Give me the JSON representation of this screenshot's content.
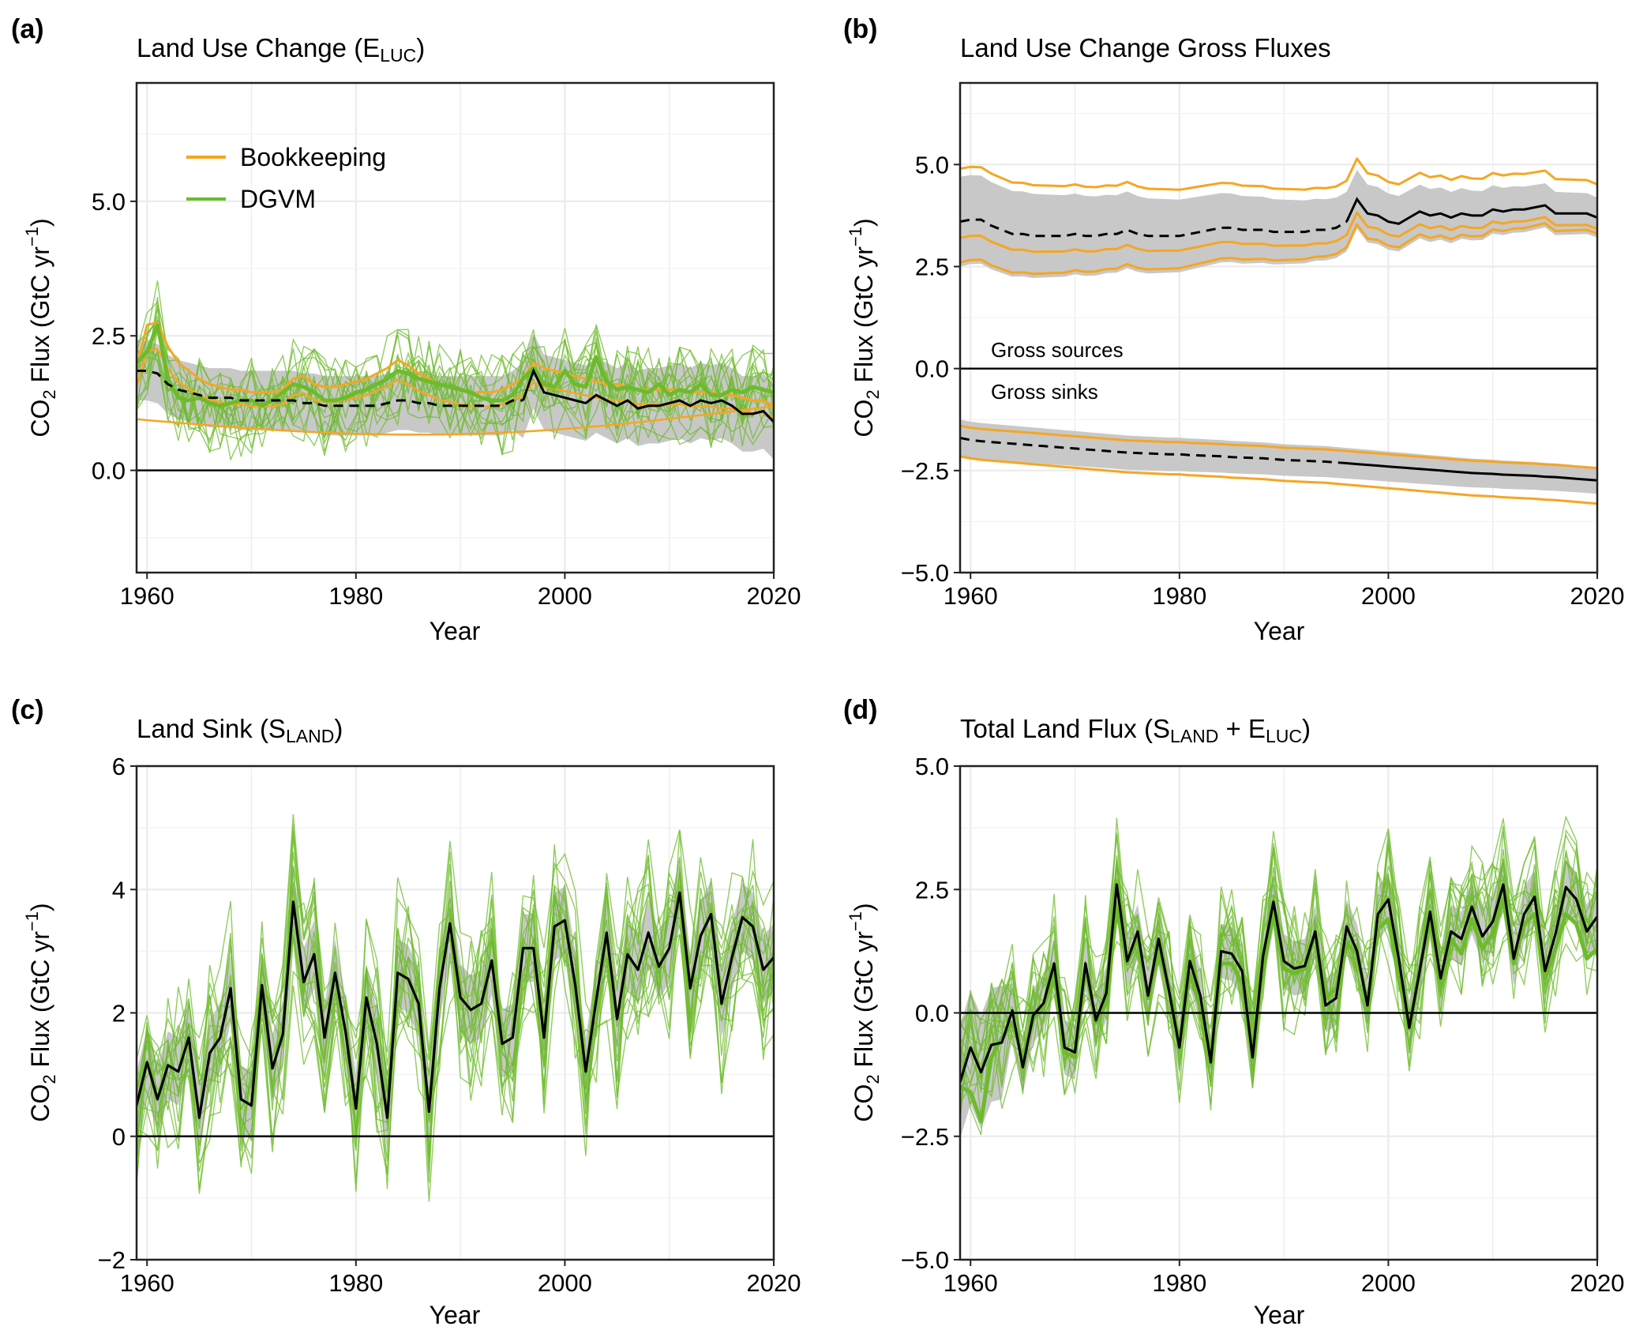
{
  "figure": {
    "panels": [
      {
        "letter": "(a)",
        "title_main": "Land Use Change (E",
        "title_sub": "LUC",
        "title_tail": ")",
        "ylabel_main": "CO",
        "ylabel_sub2": "2",
        "ylabel_rest": " Flux (GtC yr",
        "ylabel_sup": "−1",
        "ylabel_end": ")",
        "xlabel": "Year",
        "legend": [
          {
            "label": "Bookkeeping",
            "color": "#f5a623"
          },
          {
            "label": "DGVM",
            "color": "#6dbb2c"
          }
        ]
      },
      {
        "letter": "(b)",
        "title_main": "Land Use Change Gross Fluxes",
        "title_sub": "",
        "title_tail": "",
        "ylabel_main": "CO",
        "ylabel_sub2": "2",
        "ylabel_rest": " Flux (GtC yr",
        "ylabel_sup": "−1",
        "ylabel_end": ")",
        "xlabel": "Year",
        "annotations": [
          "Gross sources",
          "Gross sinks"
        ]
      },
      {
        "letter": "(c)",
        "title_main": "Land Sink (S",
        "title_sub": "LAND",
        "title_tail": ")",
        "ylabel_main": "CO",
        "ylabel_sub2": "2",
        "ylabel_rest": " Flux (GtC yr",
        "ylabel_sup": "−1",
        "ylabel_end": ")",
        "xlabel": "Year"
      },
      {
        "letter": "(d)",
        "title_main": "Total Land Flux (S",
        "title_sub": "LAND",
        "title_mid": " + E",
        "title_sub2": "LUC",
        "title_tail": ")",
        "ylabel_main": "CO",
        "ylabel_sub2": "2",
        "ylabel_rest": " Flux (GtC yr",
        "ylabel_sup": "−1",
        "ylabel_end": ")",
        "xlabel": "Year"
      }
    ],
    "colors": {
      "bookkeeping": "#f5a623",
      "dgvm": "#6dbb2c",
      "uncertainty_band": "#c8c8c8",
      "mean": "#000000"
    }
  },
  "chart_data": [
    {
      "type": "line",
      "title": "Land Use Change (ELUC)",
      "xlabel": "Year",
      "ylabel": "CO2 Flux (GtC yr−1)",
      "xlim": [
        1959,
        2020
      ],
      "ylim": [
        -1.9,
        7.2
      ],
      "xticks": [
        1960,
        1980,
        2000,
        2020
      ],
      "yticks": [
        0.0,
        2.5,
        5.0
      ],
      "ytick_labels": [
        "0.0",
        "2.5",
        "5.0"
      ],
      "grid": true,
      "legend_position": "top-left",
      "x": [
        1959,
        1960,
        1961,
        1962,
        1963,
        1964,
        1965,
        1966,
        1967,
        1968,
        1969,
        1970,
        1971,
        1972,
        1973,
        1974,
        1975,
        1976,
        1977,
        1978,
        1979,
        1980,
        1981,
        1982,
        1983,
        1984,
        1985,
        1986,
        1987,
        1988,
        1989,
        1990,
        1991,
        1992,
        1993,
        1994,
        1995,
        1996,
        1997,
        1998,
        1999,
        2000,
        2001,
        2002,
        2003,
        2004,
        2005,
        2006,
        2007,
        2008,
        2009,
        2010,
        2011,
        2012,
        2013,
        2014,
        2015,
        2016,
        2017,
        2018,
        2019,
        2020
      ],
      "series": [
        {
          "name": "Bookkeeping",
          "color": "#f5a623",
          "values": [
            1.9,
            2.7,
            2.75,
            2.3,
            2.0,
            1.85,
            1.7,
            1.6,
            1.55,
            1.5,
            1.5,
            1.45,
            1.45,
            1.45,
            1.5,
            1.7,
            1.75,
            1.6,
            1.55,
            1.55,
            1.6,
            1.65,
            1.7,
            1.8,
            1.9,
            2.05,
            1.95,
            1.8,
            1.7,
            1.6,
            1.55,
            1.5,
            1.45,
            1.45,
            1.45,
            1.5,
            1.6,
            1.7,
            2.0,
            1.9,
            1.85,
            1.8,
            1.75,
            1.7,
            1.65,
            1.6,
            1.6,
            1.55,
            1.5,
            1.5,
            1.5,
            1.5,
            1.5,
            1.45,
            1.45,
            1.45,
            1.4,
            1.4,
            1.35,
            1.3,
            1.3,
            1.2
          ]
        },
        {
          "name": "DGVM",
          "color": "#6dbb2c",
          "values": [
            2.0,
            2.2,
            2.7,
            1.7,
            1.35,
            1.3,
            1.35,
            1.25,
            1.2,
            1.25,
            1.3,
            1.3,
            1.2,
            1.3,
            1.45,
            1.6,
            1.55,
            1.45,
            1.3,
            1.3,
            1.35,
            1.45,
            1.5,
            1.6,
            1.7,
            1.85,
            1.8,
            1.7,
            1.65,
            1.6,
            1.55,
            1.5,
            1.45,
            1.35,
            1.3,
            1.3,
            1.4,
            1.7,
            1.9,
            1.6,
            1.55,
            1.85,
            1.6,
            1.55,
            2.1,
            1.65,
            1.5,
            1.55,
            1.5,
            1.45,
            1.6,
            1.4,
            1.5,
            1.45,
            1.6,
            1.4,
            1.4,
            1.5,
            1.45,
            1.55,
            1.5,
            1.45
          ]
        },
        {
          "name": "",
          "color": "#000000",
          "values": [
            1.85,
            1.85,
            1.8,
            1.6,
            1.5,
            1.45,
            1.4,
            1.35,
            1.35,
            1.35,
            1.3,
            1.3,
            1.3,
            1.3,
            1.3,
            1.3,
            1.25,
            1.25,
            1.2,
            1.2,
            1.2,
            1.2,
            1.2,
            1.2,
            1.25,
            1.3,
            1.3,
            1.25,
            1.25,
            1.2,
            1.2,
            1.2,
            1.2,
            1.2,
            1.2,
            1.2,
            1.3,
            1.3,
            1.85,
            1.45,
            1.4,
            1.35,
            1.3,
            1.25,
            1.4,
            1.3,
            1.2,
            1.3,
            1.15,
            1.2,
            1.2,
            1.25,
            1.3,
            1.2,
            1.3,
            1.25,
            1.3,
            1.2,
            1.05,
            1.05,
            1.1,
            0.9
          ]
        }
      ]
    },
    {
      "type": "line",
      "title": "Land Use Change Gross Fluxes",
      "xlabel": "Year",
      "ylabel": "CO2 Flux (GtC yr−1)",
      "xlim": [
        1959,
        2020
      ],
      "ylim": [
        -5.0,
        7.0
      ],
      "xticks": [
        1960,
        1980,
        2000,
        2020
      ],
      "yticks": [
        -5.0,
        -2.5,
        0.0,
        2.5,
        5.0
      ],
      "ytick_labels": [
        "−5.0",
        "−2.5",
        "0.0",
        "2.5",
        "5.0"
      ],
      "grid": true,
      "x": [
        1959,
        1960,
        1961,
        1962,
        1963,
        1964,
        1965,
        1966,
        1967,
        1968,
        1969,
        1970,
        1971,
        1972,
        1973,
        1974,
        1975,
        1976,
        1977,
        1978,
        1979,
        1980,
        1981,
        1982,
        1983,
        1984,
        1985,
        1986,
        1987,
        1988,
        1989,
        1990,
        1991,
        1992,
        1993,
        1994,
        1995,
        1996,
        1997,
        1998,
        1999,
        2000,
        2001,
        2002,
        2003,
        2004,
        2005,
        2006,
        2007,
        2008,
        2009,
        2010,
        2011,
        2012,
        2013,
        2014,
        2015,
        2016,
        2017,
        2018,
        2019,
        2020
      ],
      "series": [
        {
          "name": "Gross sources",
          "color": "#000000",
          "values": [
            3.6,
            3.65,
            3.65,
            3.5,
            3.4,
            3.3,
            3.3,
            3.25,
            3.25,
            3.25,
            3.25,
            3.3,
            3.25,
            3.25,
            3.3,
            3.3,
            3.4,
            3.3,
            3.25,
            3.25,
            3.25,
            3.25,
            3.3,
            3.35,
            3.4,
            3.45,
            3.45,
            3.4,
            3.4,
            3.4,
            3.35,
            3.35,
            3.35,
            3.35,
            3.4,
            3.4,
            3.45,
            3.6,
            4.15,
            3.8,
            3.75,
            3.6,
            3.55,
            3.7,
            3.85,
            3.75,
            3.8,
            3.7,
            3.8,
            3.75,
            3.75,
            3.9,
            3.85,
            3.9,
            3.9,
            3.95,
            4.0,
            3.8,
            3.8,
            3.8,
            3.8,
            3.7
          ]
        },
        {
          "name": "Gross sinks",
          "color": "#000000",
          "values": [
            -1.7,
            -1.75,
            -1.78,
            -1.8,
            -1.82,
            -1.84,
            -1.86,
            -1.88,
            -1.9,
            -1.92,
            -1.94,
            -1.96,
            -1.98,
            -2.0,
            -2.02,
            -2.04,
            -2.06,
            -2.07,
            -2.08,
            -2.09,
            -2.1,
            -2.1,
            -2.12,
            -2.13,
            -2.14,
            -2.15,
            -2.17,
            -2.18,
            -2.19,
            -2.2,
            -2.22,
            -2.24,
            -2.25,
            -2.26,
            -2.27,
            -2.28,
            -2.3,
            -2.32,
            -2.34,
            -2.36,
            -2.38,
            -2.4,
            -2.42,
            -2.44,
            -2.46,
            -2.48,
            -2.5,
            -2.52,
            -2.54,
            -2.56,
            -2.57,
            -2.58,
            -2.6,
            -2.61,
            -2.62,
            -2.63,
            -2.65,
            -2.66,
            -2.68,
            -2.7,
            -2.72,
            -2.74
          ]
        }
      ]
    },
    {
      "type": "line",
      "title": "Land Sink (SLAND)",
      "xlabel": "Year",
      "ylabel": "CO2 Flux (GtC yr−1)",
      "xlim": [
        1959,
        2020
      ],
      "ylim": [
        -2,
        6
      ],
      "xticks": [
        1960,
        1980,
        2000,
        2020
      ],
      "yticks": [
        -2,
        0,
        2,
        4,
        6
      ],
      "ytick_labels": [
        "−2",
        "0",
        "2",
        "4",
        "6"
      ],
      "grid": true,
      "x": [
        1959,
        1960,
        1961,
        1962,
        1963,
        1964,
        1965,
        1966,
        1967,
        1968,
        1969,
        1970,
        1971,
        1972,
        1973,
        1974,
        1975,
        1976,
        1977,
        1978,
        1979,
        1980,
        1981,
        1982,
        1983,
        1984,
        1985,
        1986,
        1987,
        1988,
        1989,
        1990,
        1991,
        1992,
        1993,
        1994,
        1995,
        1996,
        1997,
        1998,
        1999,
        2000,
        2001,
        2002,
        2003,
        2004,
        2005,
        2006,
        2007,
        2008,
        2009,
        2010,
        2011,
        2012,
        2013,
        2014,
        2015,
        2016,
        2017,
        2018,
        2019,
        2020
      ],
      "series": [
        {
          "name": "",
          "color": "#000000",
          "values": [
            0.5,
            1.2,
            0.6,
            1.15,
            1.05,
            1.6,
            0.3,
            1.35,
            1.6,
            2.4,
            0.6,
            0.5,
            2.45,
            1.1,
            1.65,
            3.8,
            2.5,
            2.95,
            1.6,
            2.65,
            1.7,
            0.45,
            2.25,
            1.5,
            0.3,
            2.65,
            2.55,
            2.15,
            0.4,
            2.4,
            3.45,
            2.25,
            2.05,
            2.15,
            2.85,
            1.5,
            1.6,
            3.05,
            3.05,
            1.6,
            3.4,
            3.5,
            2.45,
            1.05,
            2.2,
            3.3,
            1.9,
            2.95,
            2.7,
            3.3,
            2.75,
            3.05,
            3.95,
            2.4,
            3.25,
            3.6,
            2.15,
            2.9,
            3.55,
            3.4,
            2.7,
            2.9
          ]
        }
      ]
    },
    {
      "type": "line",
      "title": "Total Land Flux (SLAND + ELUC)",
      "xlabel": "Year",
      "ylabel": "CO2 Flux (GtC yr−1)",
      "xlim": [
        1959,
        2020
      ],
      "ylim": [
        -5.0,
        5.0
      ],
      "xticks": [
        1960,
        1980,
        2000,
        2020
      ],
      "yticks": [
        -5.0,
        -2.5,
        0.0,
        2.5,
        5.0
      ],
      "ytick_labels": [
        "−5.0",
        "−2.5",
        "0.0",
        "2.5",
        "5.0"
      ],
      "grid": true,
      "x": [
        1959,
        1960,
        1961,
        1962,
        1963,
        1964,
        1965,
        1966,
        1967,
        1968,
        1969,
        1970,
        1971,
        1972,
        1973,
        1974,
        1975,
        1976,
        1977,
        1978,
        1979,
        1980,
        1981,
        1982,
        1983,
        1984,
        1985,
        1986,
        1987,
        1988,
        1989,
        1990,
        1991,
        1992,
        1993,
        1994,
        1995,
        1996,
        1997,
        1998,
        1999,
        2000,
        2001,
        2002,
        2003,
        2004,
        2005,
        2006,
        2007,
        2008,
        2009,
        2010,
        2011,
        2012,
        2013,
        2014,
        2015,
        2016,
        2017,
        2018,
        2019,
        2020
      ],
      "series": [
        {
          "name": "DGVM",
          "color": "#6dbb2c",
          "values": [
            -1.5,
            -1.6,
            -2.2,
            -0.9,
            -0.5,
            -0.2,
            -0.9,
            -0.1,
            0.1,
            0.8,
            -0.8,
            -0.9,
            0.9,
            -0.2,
            0.2,
            2.1,
            1.0,
            1.5,
            0.3,
            1.3,
            0.5,
            -0.6,
            0.8,
            0.1,
            -0.9,
            1.0,
            1.0,
            0.6,
            -0.8,
            0.9,
            2.0,
            0.9,
            0.8,
            0.9,
            1.6,
            0.3,
            0.5,
            1.4,
            1.2,
            0.2,
            1.7,
            1.9,
            0.7,
            -0.3,
            0.9,
            1.9,
            0.6,
            1.5,
            1.2,
            1.9,
            1.3,
            1.6,
            2.3,
            1.0,
            1.8,
            2.0,
            0.7,
            1.3,
            2.0,
            1.8,
            1.1,
            1.3
          ]
        },
        {
          "name": "",
          "color": "#000000",
          "values": [
            -1.4,
            -0.7,
            -1.2,
            -0.65,
            -0.6,
            0.05,
            -1.1,
            -0.05,
            0.2,
            1.0,
            -0.7,
            -0.8,
            1.0,
            -0.15,
            0.4,
            2.6,
            1.05,
            1.65,
            0.35,
            1.5,
            0.45,
            -0.7,
            1.05,
            0.35,
            -1.0,
            1.25,
            1.2,
            0.85,
            -0.9,
            1.15,
            2.25,
            1.05,
            0.9,
            0.95,
            1.65,
            0.15,
            0.3,
            1.75,
            1.25,
            0.15,
            2.0,
            2.3,
            1.1,
            -0.3,
            0.85,
            2.05,
            0.7,
            1.65,
            1.5,
            2.15,
            1.55,
            1.85,
            2.6,
            1.1,
            2.0,
            2.35,
            0.85,
            1.6,
            2.55,
            2.3,
            1.65,
            1.95
          ]
        }
      ]
    }
  ]
}
